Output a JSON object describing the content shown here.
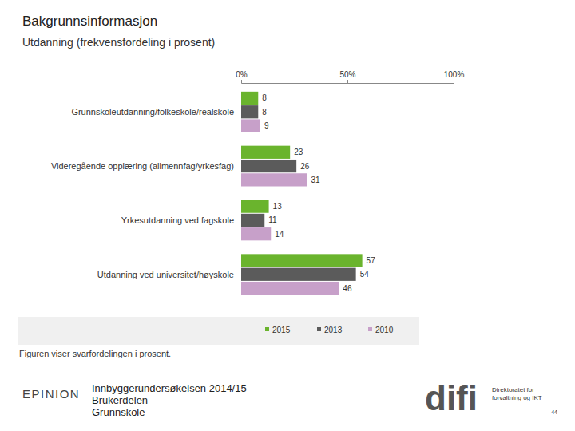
{
  "chart_data": {
    "type": "bar",
    "orientation": "horizontal",
    "title": "Bakgrunnsinformasjon",
    "subtitle": "Utdanning (frekvensfordeling i prosent)",
    "categories": [
      "Grunnskoleutdanning/folkeskole/realskole",
      "Videregående opplæring (allmennfag/yrkesfag)",
      "Yrkesutdanning ved fagskole",
      "Utdanning ved universitet/høyskole"
    ],
    "series": [
      {
        "name": "2015",
        "color": "#6ab42d",
        "values": [
          8,
          23,
          13,
          57
        ]
      },
      {
        "name": "2013",
        "color": "#5b5b5b",
        "values": [
          8,
          26,
          11,
          54
        ]
      },
      {
        "name": "2010",
        "color": "#c7a0c9",
        "values": [
          9,
          31,
          14,
          46
        ]
      }
    ],
    "xlim": [
      0,
      100
    ],
    "xticks": [
      {
        "value": 0,
        "label": "0%"
      },
      {
        "value": 50,
        "label": "50%"
      },
      {
        "value": 100,
        "label": "100%"
      }
    ],
    "grid": false,
    "data_labels": true,
    "legend": "bottom",
    "annotations": [
      "Figuren viser svarfordelingen i prosent."
    ]
  },
  "footer": {
    "left_logo": "EPINION",
    "lines": [
      "Innbyggerundersøkelsen 2014/15",
      "Brukerdelen",
      "Grunnskole"
    ],
    "right_logo": "difi",
    "right_logo_text": [
      "Direktoratet for",
      "forvaltning og IKT"
    ],
    "page": "44"
  }
}
